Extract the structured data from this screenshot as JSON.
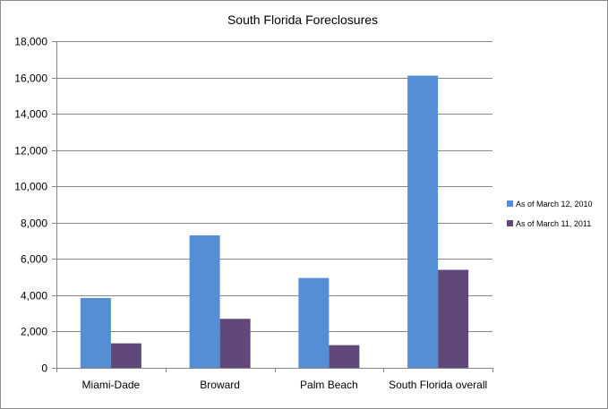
{
  "chart_data": {
    "type": "bar",
    "title": "South  Florida Foreclosures",
    "xlabel": "",
    "ylabel": "",
    "categories": [
      "Miami-Dade",
      "Broward",
      "Palm Beach",
      "South Florida overall"
    ],
    "ylim": [
      0,
      18000
    ],
    "yticks": [
      0,
      2000,
      4000,
      6000,
      8000,
      10000,
      12000,
      14000,
      16000,
      18000
    ],
    "ytick_labels": [
      "0",
      "2,000",
      "4,000",
      "6,000",
      "8,000",
      "10,000",
      "12,000",
      "14,000",
      "16,000",
      "18,000"
    ],
    "grid": true,
    "legend_position": "right",
    "series": [
      {
        "name": "As of March 12, 2010",
        "color": "#558ed5",
        "values": [
          3850,
          7300,
          4950,
          16100
        ]
      },
      {
        "name": "As of March 11, 2011",
        "color": "#60497a",
        "values": [
          1350,
          2700,
          1250,
          5400
        ]
      }
    ]
  }
}
